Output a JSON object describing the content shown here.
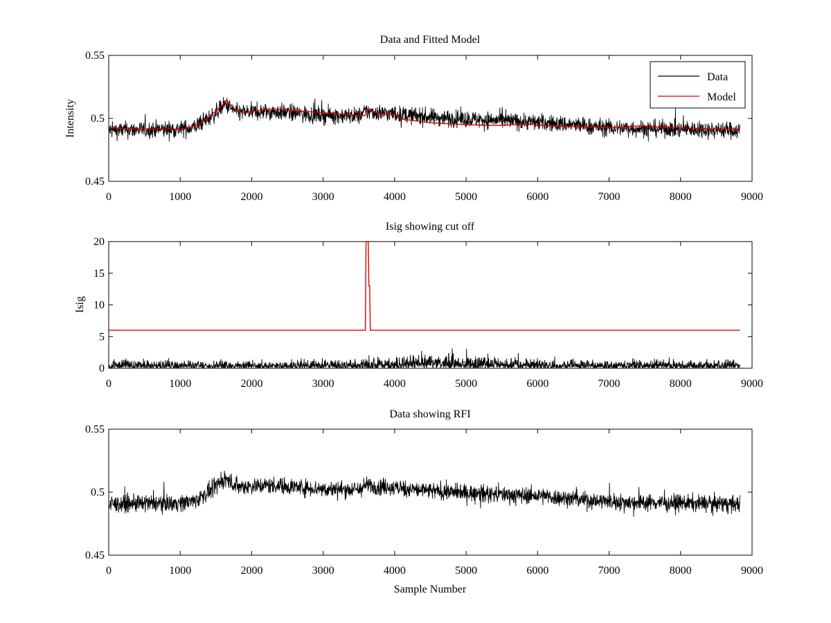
{
  "figure": {
    "xlabel": "Sample Number"
  },
  "chart_data": [
    {
      "type": "line",
      "title": "Data and Fitted Model",
      "xlabel": "",
      "ylabel": "Intensity",
      "xlim": [
        0,
        9000
      ],
      "ylim": [
        0.45,
        0.55
      ],
      "xticks": [
        0,
        1000,
        2000,
        3000,
        4000,
        5000,
        6000,
        7000,
        8000,
        9000
      ],
      "yticks": [
        0.45,
        0.5,
        0.55
      ],
      "ytick_labels": [
        "0.45",
        "0.5",
        "0.55"
      ],
      "legend": {
        "placement": "top-right",
        "entries": [
          "Data",
          "Model"
        ]
      },
      "series": [
        {
          "name": "Data",
          "color": "#000000",
          "style": "noisy",
          "x_end": 8830,
          "noise_amplitude": 0.006,
          "baseline": {
            "x": [
              0,
              1000,
              1200,
              1450,
              1630,
              1800,
              2300,
              3000,
              3500,
              3600,
              4000,
              4500,
              5000,
              6000,
              7000,
              8000,
              8830
            ],
            "y": [
              0.4905,
              0.4915,
              0.493,
              0.502,
              0.511,
              0.5045,
              0.5055,
              0.5025,
              0.502,
              0.5055,
              0.5035,
              0.501,
              0.4995,
              0.497,
              0.4925,
              0.4915,
              0.4905
            ]
          }
        },
        {
          "name": "Model",
          "color": "#e00000",
          "style": "smooth",
          "x": [
            0,
            500,
            1000,
            1100,
            1200,
            1300,
            1400,
            1500,
            1600,
            1650,
            1700,
            1800,
            1900,
            2000,
            2300,
            2500,
            3000,
            3500,
            3580,
            3620,
            3700,
            3800,
            3900,
            3950,
            4000,
            4100,
            4500,
            5000,
            5300,
            5500,
            5900,
            6000,
            6500,
            7000,
            7200,
            7400,
            7600,
            8000,
            8500,
            8830
          ],
          "y": [
            0.4925,
            0.4915,
            0.4915,
            0.4925,
            0.494,
            0.497,
            0.501,
            0.506,
            0.511,
            0.5145,
            0.511,
            0.5055,
            0.5045,
            0.5055,
            0.5075,
            0.5065,
            0.5045,
            0.5025,
            0.502,
            0.5075,
            0.5055,
            0.5035,
            0.5035,
            0.5035,
            0.5035,
            0.4995,
            0.4965,
            0.495,
            0.4945,
            0.4945,
            0.4955,
            0.4945,
            0.4935,
            0.4925,
            0.493,
            0.494,
            0.4935,
            0.4925,
            0.4915,
            0.4915
          ]
        }
      ]
    },
    {
      "type": "line",
      "title": "Isig showing cut off",
      "xlabel": "",
      "ylabel": "Isig",
      "xlim": [
        0,
        9000
      ],
      "ylim": [
        0,
        20
      ],
      "xticks": [
        0,
        1000,
        2000,
        3000,
        4000,
        5000,
        6000,
        7000,
        8000,
        9000
      ],
      "yticks": [
        0,
        5,
        10,
        15,
        20
      ],
      "ytick_labels": [
        "0",
        "5",
        "10",
        "15",
        "20"
      ],
      "series": [
        {
          "name": "Isig",
          "color": "#000000",
          "style": "spiky",
          "x_end": 8830,
          "baseline": {
            "x": [
              0,
              2000,
              4000,
              4800,
              5500,
              6500,
              8000,
              8830
            ],
            "y": [
              0.6,
              0.5,
              0.8,
              1.1,
              0.8,
              0.6,
              0.6,
              0.6
            ]
          },
          "peak_max": 3.9
        },
        {
          "name": "Cut off",
          "color": "#e00000",
          "style": "step",
          "x": [
            0,
            3590,
            3600,
            3630,
            3640,
            3650,
            3660,
            8830
          ],
          "y": [
            6,
            6,
            20,
            20,
            13,
            13,
            6,
            6
          ]
        }
      ]
    },
    {
      "type": "line",
      "title": "Data showing RFI",
      "xlabel": "Sample Number",
      "ylabel": "",
      "xlim": [
        0,
        9000
      ],
      "ylim": [
        0.45,
        0.55
      ],
      "xticks": [
        0,
        1000,
        2000,
        3000,
        4000,
        5000,
        6000,
        7000,
        8000,
        9000
      ],
      "yticks": [
        0.45,
        0.5,
        0.55
      ],
      "ytick_labels": [
        "0.45",
        "0.5",
        "0.55"
      ],
      "series": [
        {
          "name": "Data",
          "color": "#000000",
          "style": "noisy",
          "x_end": 8830,
          "noise_amplitude": 0.006,
          "baseline": {
            "x": [
              0,
              1000,
              1200,
              1450,
              1630,
              1800,
              2300,
              3000,
              3500,
              3600,
              4000,
              4500,
              5000,
              6000,
              7000,
              8000,
              8830
            ],
            "y": [
              0.4905,
              0.4915,
              0.493,
              0.502,
              0.511,
              0.5045,
              0.5055,
              0.5025,
              0.502,
              0.5055,
              0.5035,
              0.501,
              0.4995,
              0.497,
              0.4925,
              0.4915,
              0.4905
            ]
          }
        }
      ]
    }
  ]
}
